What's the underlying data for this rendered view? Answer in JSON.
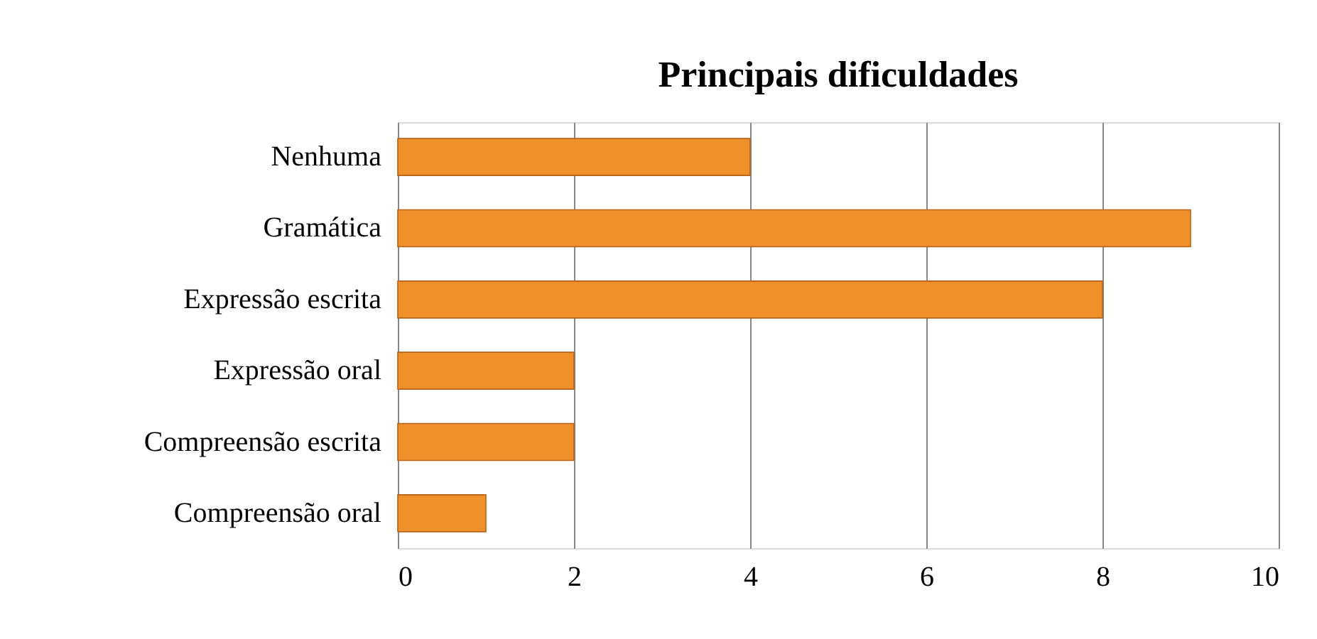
{
  "chart_data": {
    "type": "bar",
    "orientation": "horizontal",
    "title": "Principais dificuldades",
    "categories": [
      "Nenhuma",
      "Gramática",
      "Expressão escrita",
      "Expressão oral",
      "Compreensão escrita",
      "Compreensão oral"
    ],
    "values": [
      4,
      9,
      8,
      2,
      2,
      1
    ],
    "color": "#f0902a",
    "xlim": [
      0,
      10
    ],
    "xticks": [
      0,
      2,
      4,
      6,
      8,
      10
    ],
    "grid": "x"
  }
}
